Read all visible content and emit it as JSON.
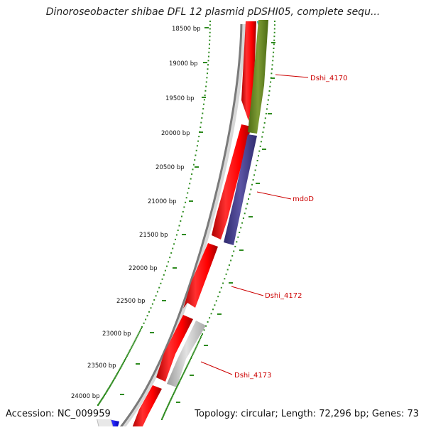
{
  "title": "Dinoroseobacter shibae DFL 12 plasmid pDSHI05, complete sequ...",
  "accession": "Accession: NC_009959",
  "topology": "Topology: circular; Length: 72,296 bp; Genes: 73",
  "ticks": [
    "18500 bp",
    "19000 bp",
    "19500 bp",
    "20000 bp",
    "20500 bp",
    "21000 bp",
    "21500 bp",
    "22000 bp",
    "22500 bp",
    "23000 bp",
    "23500 bp",
    "24000 bp"
  ],
  "gene_labels": [
    "Dshi_4170",
    "mdoD",
    "Dshi_4172",
    "Dshi_4173"
  ],
  "colors": {
    "tick": "#2e8b1f",
    "forward_gene": "#ff1a1a",
    "label": "#cc0000",
    "dshi_4170": "#6b8e23",
    "mdoD": "#4b4490",
    "dshi_4173": "#c8c8c8",
    "top_gene": "#00d7d7",
    "bottom_gene": "#1a1aff",
    "backbone": "#7a7a7a"
  }
}
